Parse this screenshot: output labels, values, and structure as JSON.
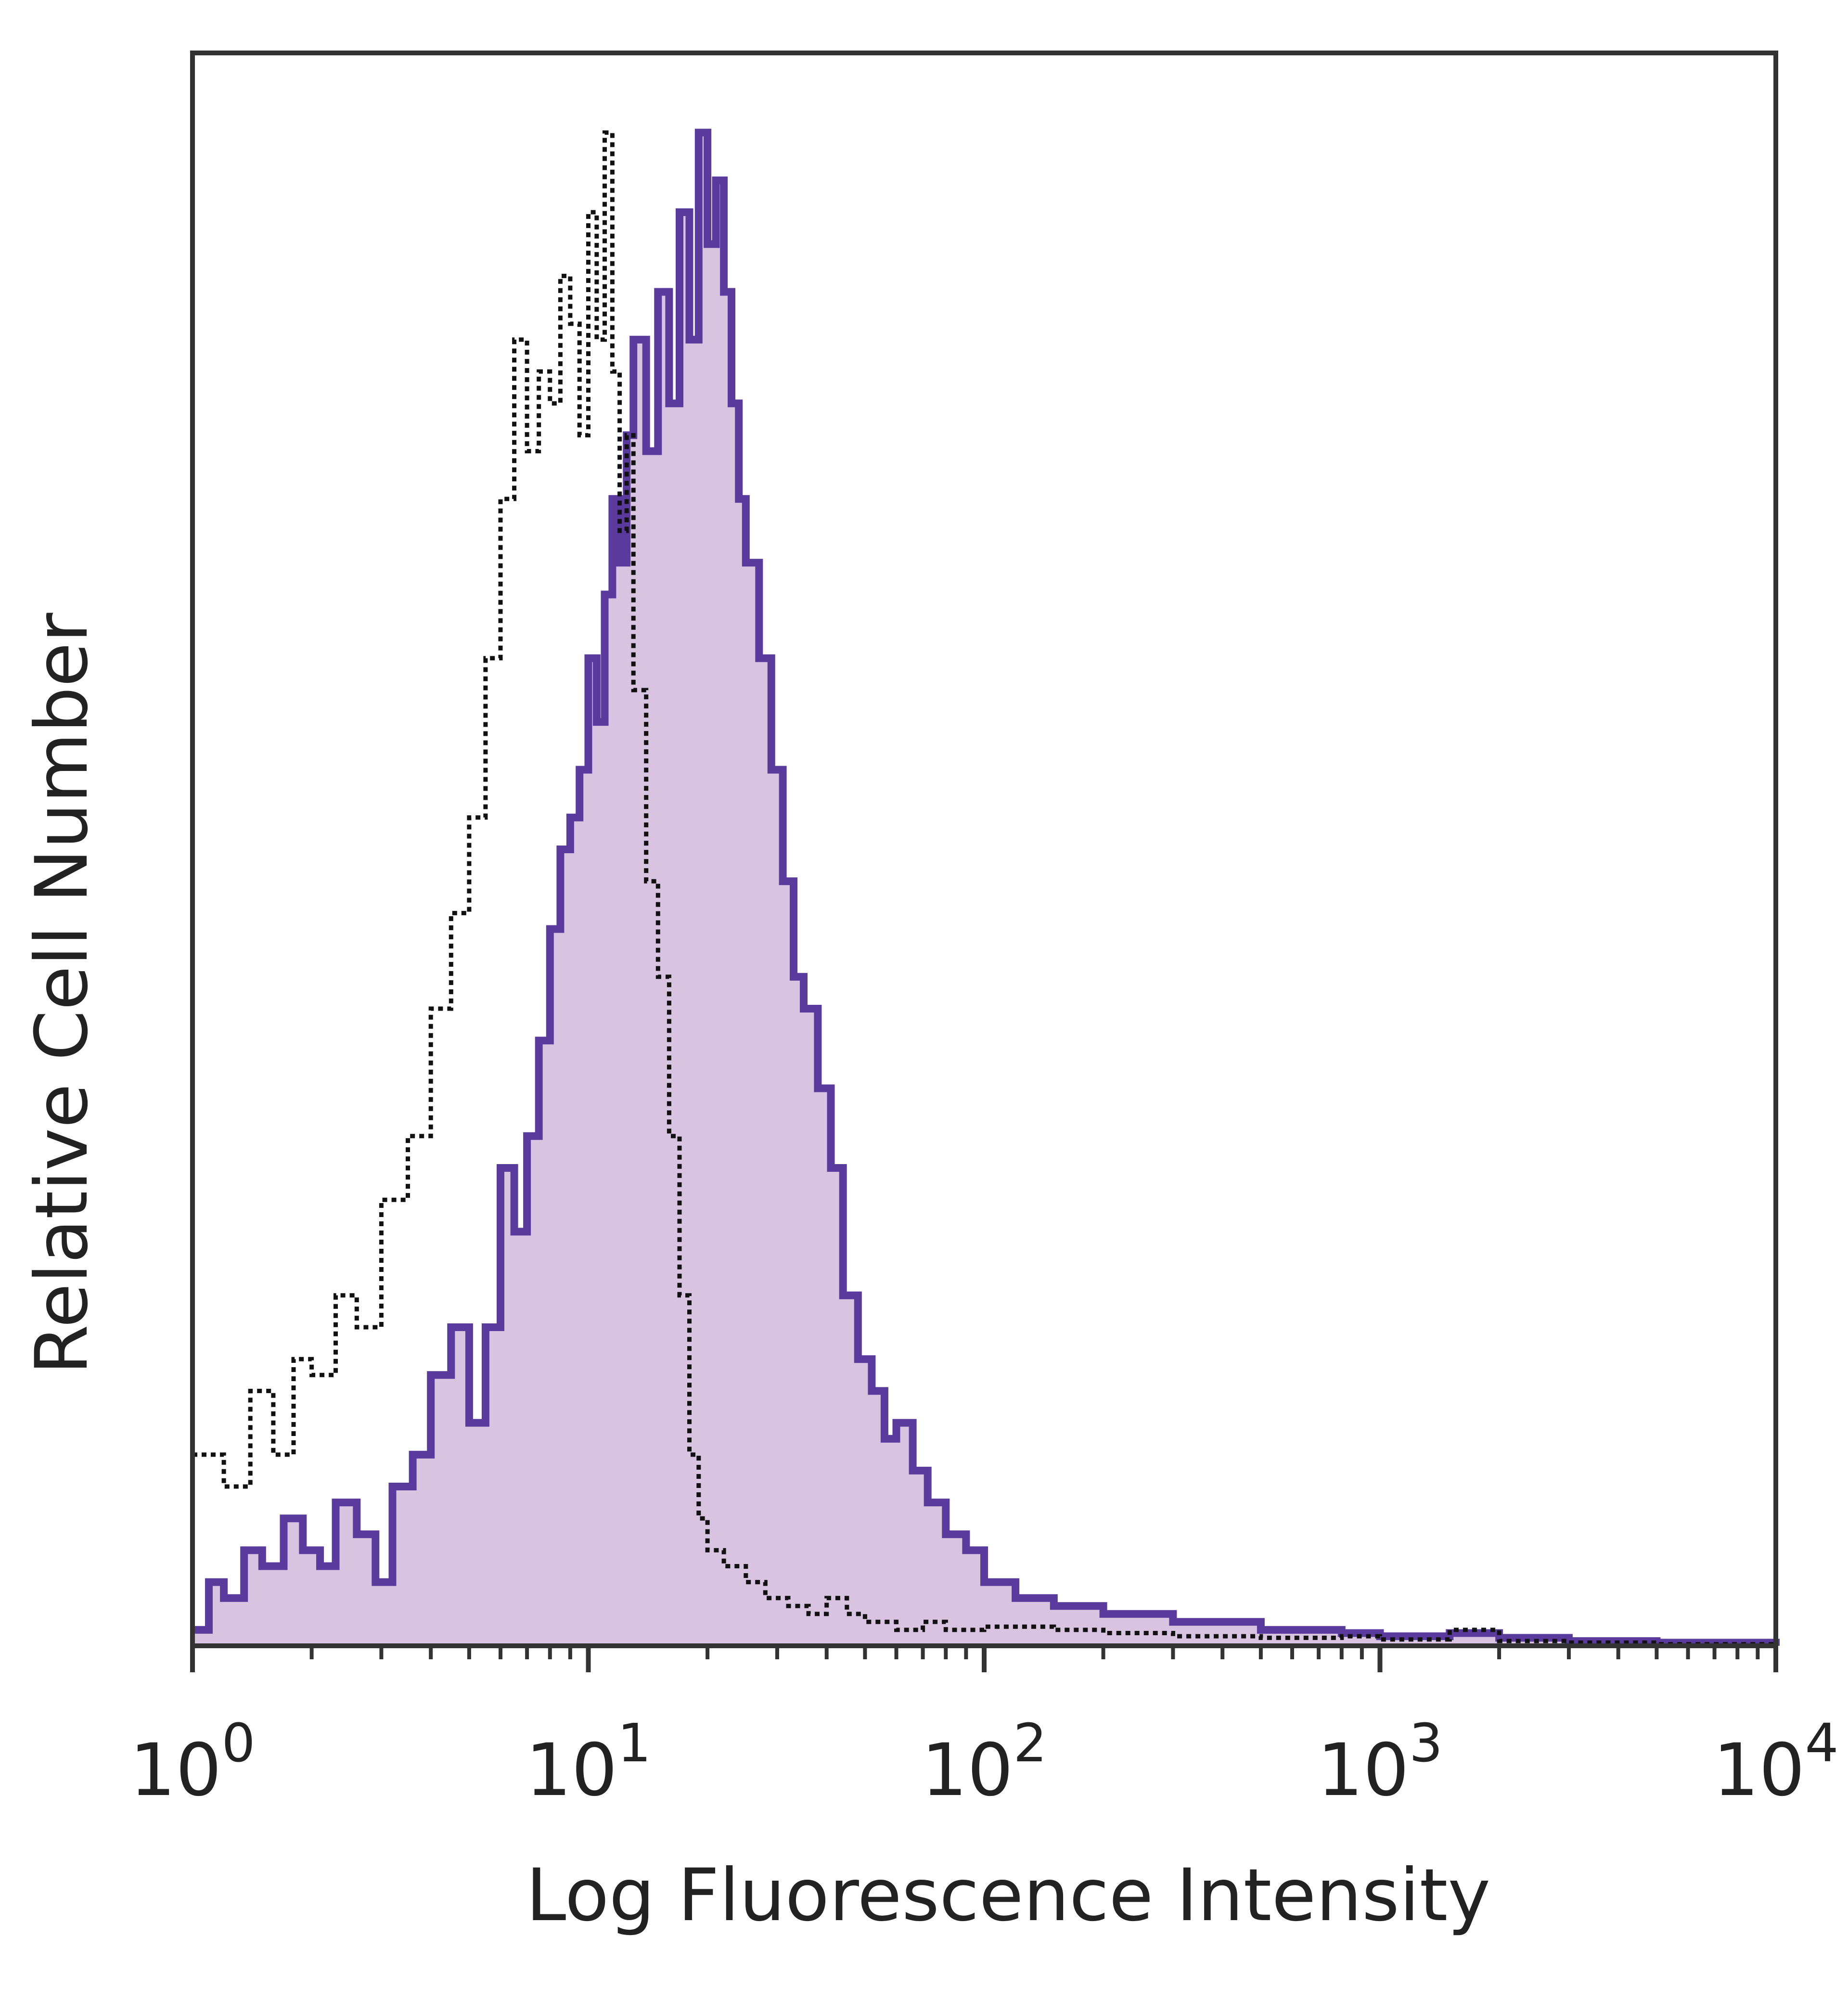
{
  "chart_data": {
    "type": "area",
    "title": "",
    "xlabel": "Log Fluorescence Intensity",
    "ylabel": "Relative Cell Number",
    "x_scale": "log",
    "xlim": [
      1,
      10000
    ],
    "ylim": [
      0,
      1.0
    ],
    "x_tick_labels": [
      {
        "base": "10",
        "exp": "0",
        "value": 1
      },
      {
        "base": "10",
        "exp": "1",
        "value": 10
      },
      {
        "base": "10",
        "exp": "2",
        "value": 100
      },
      {
        "base": "10",
        "exp": "3",
        "value": 1000
      },
      {
        "base": "10",
        "exp": "4",
        "value": 10000
      }
    ],
    "grid": false,
    "legend": false,
    "series": [
      {
        "style": "dotted black outline",
        "color": "#111111",
        "x": [
          1.0,
          1.2,
          1.4,
          1.6,
          1.8,
          2.0,
          2.3,
          2.6,
          3.0,
          3.5,
          4.0,
          4.5,
          5.0,
          5.5,
          6.0,
          6.5,
          7.0,
          7.5,
          8.0,
          8.5,
          9.0,
          9.5,
          10.0,
          10.5,
          11.0,
          11.5,
          12.0,
          12.5,
          13.0,
          14.0,
          15.0,
          16.0,
          17.0,
          18.0,
          19.0,
          20.0,
          22.0,
          25.0,
          28.0,
          32.0,
          36.0,
          40.0,
          45.0,
          50.0,
          60.0,
          70.0,
          80.0,
          100.0,
          150.0,
          200.0,
          300.0,
          500.0,
          800.0,
          1000.0,
          1500.0,
          2000.0,
          3000.0,
          5000.0,
          10000.0
        ],
        "y": [
          0.12,
          0.1,
          0.16,
          0.12,
          0.18,
          0.17,
          0.22,
          0.2,
          0.28,
          0.32,
          0.4,
          0.46,
          0.52,
          0.62,
          0.72,
          0.82,
          0.75,
          0.8,
          0.78,
          0.86,
          0.83,
          0.76,
          0.9,
          0.82,
          0.95,
          0.8,
          0.7,
          0.76,
          0.6,
          0.48,
          0.42,
          0.32,
          0.22,
          0.12,
          0.08,
          0.06,
          0.05,
          0.04,
          0.03,
          0.025,
          0.02,
          0.03,
          0.02,
          0.015,
          0.01,
          0.015,
          0.01,
          0.012,
          0.01,
          0.008,
          0.006,
          0.005,
          0.006,
          0.004,
          0.01,
          0.003,
          0.002,
          0.001,
          0.0
        ]
      },
      {
        "style": "filled purple histogram",
        "color": "#5b3a9e",
        "fill": "#d8c4e0",
        "x": [
          1.0,
          1.1,
          1.2,
          1.35,
          1.5,
          1.7,
          1.9,
          2.1,
          2.3,
          2.6,
          2.9,
          3.2,
          3.6,
          4.0,
          4.5,
          5.0,
          5.5,
          6.0,
          6.5,
          7.0,
          7.5,
          8.0,
          8.5,
          9.0,
          9.5,
          10.0,
          10.5,
          11.0,
          11.5,
          12.0,
          12.5,
          13.0,
          14.0,
          15.0,
          16.0,
          17.0,
          18.0,
          19.0,
          20.0,
          21.0,
          22.0,
          23.0,
          24.0,
          25.0,
          27.0,
          29.0,
          31.0,
          33.0,
          35.0,
          38.0,
          41.0,
          44.0,
          48.0,
          52.0,
          56.0,
          60.0,
          66.0,
          72.0,
          80.0,
          90.0,
          100.0,
          120.0,
          150.0,
          200.0,
          300.0,
          500.0,
          800.0,
          1000.0,
          1500.0,
          2000.0,
          3000.0,
          5000.0,
          10000.0
        ],
        "y": [
          0.01,
          0.04,
          0.03,
          0.06,
          0.05,
          0.08,
          0.06,
          0.05,
          0.09,
          0.07,
          0.04,
          0.1,
          0.12,
          0.17,
          0.2,
          0.14,
          0.2,
          0.3,
          0.26,
          0.32,
          0.38,
          0.45,
          0.5,
          0.52,
          0.55,
          0.62,
          0.58,
          0.66,
          0.72,
          0.68,
          0.76,
          0.82,
          0.75,
          0.85,
          0.78,
          0.9,
          0.82,
          0.95,
          0.88,
          0.92,
          0.85,
          0.78,
          0.72,
          0.68,
          0.62,
          0.55,
          0.48,
          0.42,
          0.4,
          0.35,
          0.3,
          0.22,
          0.18,
          0.16,
          0.13,
          0.14,
          0.11,
          0.09,
          0.07,
          0.06,
          0.04,
          0.03,
          0.025,
          0.02,
          0.015,
          0.01,
          0.008,
          0.006,
          0.008,
          0.005,
          0.003,
          0.002,
          0.0
        ]
      }
    ]
  }
}
